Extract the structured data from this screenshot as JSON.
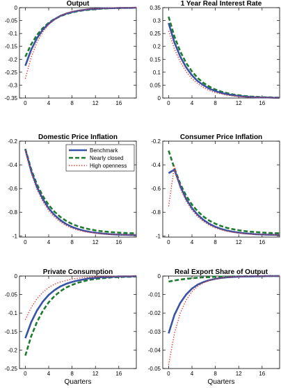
{
  "chart_data": [
    {
      "type": "line",
      "title": "Output",
      "xlabel": "",
      "ylabel": "",
      "xlim": [
        -1,
        19
      ],
      "ylim": [
        -0.35,
        0
      ],
      "xticks": [
        0,
        4,
        8,
        12,
        16
      ],
      "yticks": [
        -0.35,
        -0.3,
        -0.25,
        -0.2,
        -0.15,
        -0.1,
        -0.05,
        0
      ],
      "yticklabels": [
        "-0.35",
        "-0.3",
        "-0.25",
        "-0.2",
        "-0.15",
        "-0.1",
        "-0.05",
        "0"
      ],
      "x": [
        0,
        1,
        2,
        3,
        4,
        5,
        6,
        7,
        8,
        9,
        10,
        11,
        12,
        13,
        14,
        15,
        16,
        17,
        18,
        19
      ],
      "series": [
        {
          "values": [
            -0.225,
            -0.163,
            -0.118,
            -0.085,
            -0.062,
            -0.045,
            -0.032,
            -0.023,
            -0.017,
            -0.012,
            -0.009,
            -0.006,
            -0.005,
            -0.003,
            -0.002,
            -0.002,
            -0.001,
            -0.001,
            -0.001,
            0
          ]
        },
        {
          "values": [
            -0.19,
            -0.142,
            -0.106,
            -0.079,
            -0.059,
            -0.044,
            -0.033,
            -0.025,
            -0.018,
            -0.014,
            -0.01,
            -0.008,
            -0.006,
            -0.004,
            -0.003,
            -0.002,
            -0.002,
            -0.001,
            -0.001,
            0
          ]
        },
        {
          "values": [
            -0.275,
            -0.192,
            -0.134,
            -0.094,
            -0.066,
            -0.046,
            -0.032,
            -0.022,
            -0.016,
            -0.011,
            -0.008,
            -0.005,
            -0.004,
            -0.003,
            -0.002,
            -0.001,
            -0.001,
            -0.001,
            0,
            0
          ]
        }
      ]
    },
    {
      "type": "line",
      "title": "1 Year Real Interest Rate",
      "xlabel": "",
      "ylabel": "",
      "xlim": [
        -1,
        19
      ],
      "ylim": [
        0,
        0.35
      ],
      "xticks": [
        0,
        4,
        8,
        12,
        16
      ],
      "yticks": [
        0,
        0.05,
        0.1,
        0.15,
        0.2,
        0.25,
        0.3,
        0.35
      ],
      "yticklabels": [
        "0",
        "0.05",
        "0.1",
        "0.15",
        "0.2",
        "0.25",
        "0.3",
        "0.35"
      ],
      "x": [
        0,
        1,
        2,
        3,
        4,
        5,
        6,
        7,
        8,
        9,
        10,
        11,
        12,
        13,
        14,
        15,
        16,
        17,
        18,
        19
      ],
      "series": [
        {
          "values": [
            0.29,
            0.215,
            0.16,
            0.119,
            0.088,
            0.065,
            0.049,
            0.036,
            0.027,
            0.02,
            0.015,
            0.011,
            0.008,
            0.006,
            0.004,
            0.003,
            0.002,
            0.002,
            0.001,
            0.001
          ]
        },
        {
          "values": [
            0.315,
            0.238,
            0.18,
            0.136,
            0.103,
            0.077,
            0.058,
            0.044,
            0.033,
            0.025,
            0.019,
            0.014,
            0.011,
            0.008,
            0.006,
            0.005,
            0.003,
            0.003,
            0.002,
            0.001
          ]
        },
        {
          "values": [
            0.26,
            0.19,
            0.14,
            0.102,
            0.075,
            0.055,
            0.04,
            0.029,
            0.021,
            0.016,
            0.011,
            0.008,
            0.006,
            0.005,
            0.003,
            0.002,
            0.002,
            0.001,
            0.001,
            0.001
          ]
        }
      ]
    },
    {
      "type": "line",
      "title": "Domestic Price Inflation",
      "xlabel": "",
      "ylabel": "",
      "xlim": [
        -1,
        19
      ],
      "ylim": [
        -1.01,
        -0.2
      ],
      "xticks": [
        0,
        4,
        8,
        12,
        16
      ],
      "yticks": [
        -1,
        -0.8,
        -0.6,
        -0.4,
        -0.2
      ],
      "yticklabels": [
        "-1",
        "-0.8",
        "-0.6",
        "-0.4",
        "-0.2"
      ],
      "x": [
        0,
        1,
        2,
        3,
        4,
        5,
        6,
        7,
        8,
        9,
        10,
        11,
        12,
        13,
        14,
        15,
        16,
        17,
        18,
        19
      ],
      "series": [
        {
          "values": [
            -0.27,
            -0.452,
            -0.588,
            -0.69,
            -0.767,
            -0.824,
            -0.867,
            -0.9,
            -0.924,
            -0.942,
            -0.956,
            -0.966,
            -0.973,
            -0.979,
            -0.983,
            -0.987,
            -0.989,
            -0.991,
            -0.992,
            -0.993
          ]
        },
        {
          "values": [
            -0.265,
            -0.437,
            -0.566,
            -0.664,
            -0.739,
            -0.796,
            -0.84,
            -0.873,
            -0.899,
            -0.918,
            -0.933,
            -0.944,
            -0.953,
            -0.96,
            -0.965,
            -0.969,
            -0.972,
            -0.975,
            -0.977,
            -0.978
          ]
        },
        {
          "values": [
            -0.28,
            -0.47,
            -0.608,
            -0.71,
            -0.786,
            -0.842,
            -0.883,
            -0.913,
            -0.935,
            -0.951,
            -0.963,
            -0.971,
            -0.977,
            -0.981,
            -0.985,
            -0.987,
            -0.989,
            -0.99,
            -0.991,
            -0.992
          ]
        }
      ]
    },
    {
      "type": "line",
      "title": "Consumer Price Inflation",
      "xlabel": "",
      "ylabel": "",
      "xlim": [
        -1,
        19
      ],
      "ylim": [
        -1.01,
        -0.2
      ],
      "xticks": [
        0,
        4,
        8,
        12,
        16
      ],
      "yticks": [
        -1,
        -0.8,
        -0.6,
        -0.4,
        -0.2
      ],
      "yticklabels": [
        "-1",
        "-0.8",
        "-0.6",
        "-0.4",
        "-0.2"
      ],
      "x": [
        0,
        1,
        2,
        3,
        4,
        5,
        6,
        7,
        8,
        9,
        10,
        11,
        12,
        13,
        14,
        15,
        16,
        17,
        18,
        19
      ],
      "series": [
        {
          "values": [
            -0.47,
            -0.44,
            -0.58,
            -0.688,
            -0.766,
            -0.823,
            -0.866,
            -0.899,
            -0.923,
            -0.941,
            -0.955,
            -0.965,
            -0.972,
            -0.978,
            -0.982,
            -0.986,
            -0.988,
            -0.99,
            -0.991,
            -0.992
          ]
        },
        {
          "values": [
            -0.28,
            -0.43,
            -0.56,
            -0.66,
            -0.736,
            -0.794,
            -0.838,
            -0.872,
            -0.897,
            -0.917,
            -0.932,
            -0.943,
            -0.952,
            -0.959,
            -0.964,
            -0.968,
            -0.971,
            -0.974,
            -0.976,
            -0.977
          ]
        },
        {
          "values": [
            -0.75,
            -0.41,
            -0.6,
            -0.705,
            -0.782,
            -0.839,
            -0.88,
            -0.91,
            -0.932,
            -0.949,
            -0.961,
            -0.97,
            -0.976,
            -0.981,
            -0.984,
            -0.987,
            -0.988,
            -0.99,
            -0.991,
            -0.991
          ]
        }
      ]
    },
    {
      "type": "line",
      "title": "Private Consumption",
      "xlabel": "Quarters",
      "ylabel": "",
      "xlim": [
        -1,
        19
      ],
      "ylim": [
        -0.25,
        0
      ],
      "xticks": [
        0,
        4,
        8,
        12,
        16
      ],
      "yticks": [
        -0.25,
        -0.2,
        -0.15,
        -0.1,
        -0.05,
        0
      ],
      "yticklabels": [
        "-0.25",
        "-0.2",
        "-0.15",
        "-0.1",
        "-0.05",
        "0"
      ],
      "x": [
        0,
        1,
        2,
        3,
        4,
        5,
        6,
        7,
        8,
        9,
        10,
        11,
        12,
        13,
        14,
        15,
        16,
        17,
        18,
        19
      ],
      "series": [
        {
          "values": [
            -0.168,
            -0.125,
            -0.093,
            -0.069,
            -0.051,
            -0.038,
            -0.028,
            -0.021,
            -0.016,
            -0.012,
            -0.009,
            -0.006,
            -0.005,
            -0.003,
            -0.003,
            -0.002,
            -0.001,
            -0.001,
            -0.001,
            0
          ]
        },
        {
          "values": [
            -0.215,
            -0.163,
            -0.124,
            -0.094,
            -0.071,
            -0.054,
            -0.041,
            -0.031,
            -0.024,
            -0.018,
            -0.014,
            -0.01,
            -0.008,
            -0.006,
            -0.005,
            -0.003,
            -0.003,
            -0.002,
            -0.002,
            -0.001
          ]
        },
        {
          "values": [
            -0.118,
            -0.085,
            -0.061,
            -0.044,
            -0.031,
            -0.022,
            -0.016,
            -0.012,
            -0.008,
            -0.006,
            -0.004,
            -0.003,
            -0.002,
            -0.002,
            -0.001,
            -0.001,
            -0.001,
            0,
            0,
            0
          ]
        }
      ]
    },
    {
      "type": "line",
      "title": "Real Export Share of Output",
      "xlabel": "Quarters",
      "ylabel": "",
      "xlim": [
        -1,
        19
      ],
      "ylim": [
        -0.05,
        0
      ],
      "xticks": [
        0,
        4,
        8,
        12,
        16
      ],
      "yticks": [
        -0.05,
        -0.04,
        -0.03,
        -0.02,
        -0.01,
        0
      ],
      "yticklabels": [
        "-0.05",
        "-0.04",
        "-0.03",
        "-0.02",
        "-0.01",
        "0"
      ],
      "x": [
        0,
        1,
        2,
        3,
        4,
        5,
        6,
        7,
        8,
        9,
        10,
        11,
        12,
        13,
        14,
        15,
        16,
        17,
        18,
        19
      ],
      "series": [
        {
          "values": [
            -0.031,
            -0.021,
            -0.0145,
            -0.01,
            -0.0068,
            -0.0046,
            -0.0032,
            -0.0022,
            -0.0015,
            -0.001,
            -0.0007,
            -0.0005,
            -0.0003,
            -0.0002,
            -0.0002,
            -0.0001,
            -0.0001,
            0,
            0,
            0
          ]
        },
        {
          "values": [
            -0.003,
            -0.0024,
            -0.0019,
            -0.0015,
            -0.0012,
            -0.0009,
            -0.0007,
            -0.0006,
            -0.0004,
            -0.0003,
            -0.0003,
            -0.0002,
            -0.0002,
            -0.0001,
            -0.0001,
            -0.0001,
            -0.0001,
            0,
            0,
            0
          ]
        },
        {
          "values": [
            -0.048,
            -0.031,
            -0.02,
            -0.013,
            -0.0084,
            -0.0055,
            -0.0036,
            -0.0023,
            -0.0015,
            -0.001,
            -0.0006,
            -0.0004,
            -0.0003,
            -0.0002,
            -0.0001,
            -0.0001,
            0,
            0,
            0,
            0
          ]
        }
      ]
    }
  ],
  "legend": {
    "panel": 2,
    "placement": "top-right",
    "entries": [
      {
        "label": "Benchmark",
        "color": "#3953a4",
        "style": "solid"
      },
      {
        "label": "Nearly closed",
        "color": "#1e7a2e",
        "style": "dashed"
      },
      {
        "label": "High openness",
        "color": "#e8372f",
        "style": "dotted"
      }
    ]
  }
}
